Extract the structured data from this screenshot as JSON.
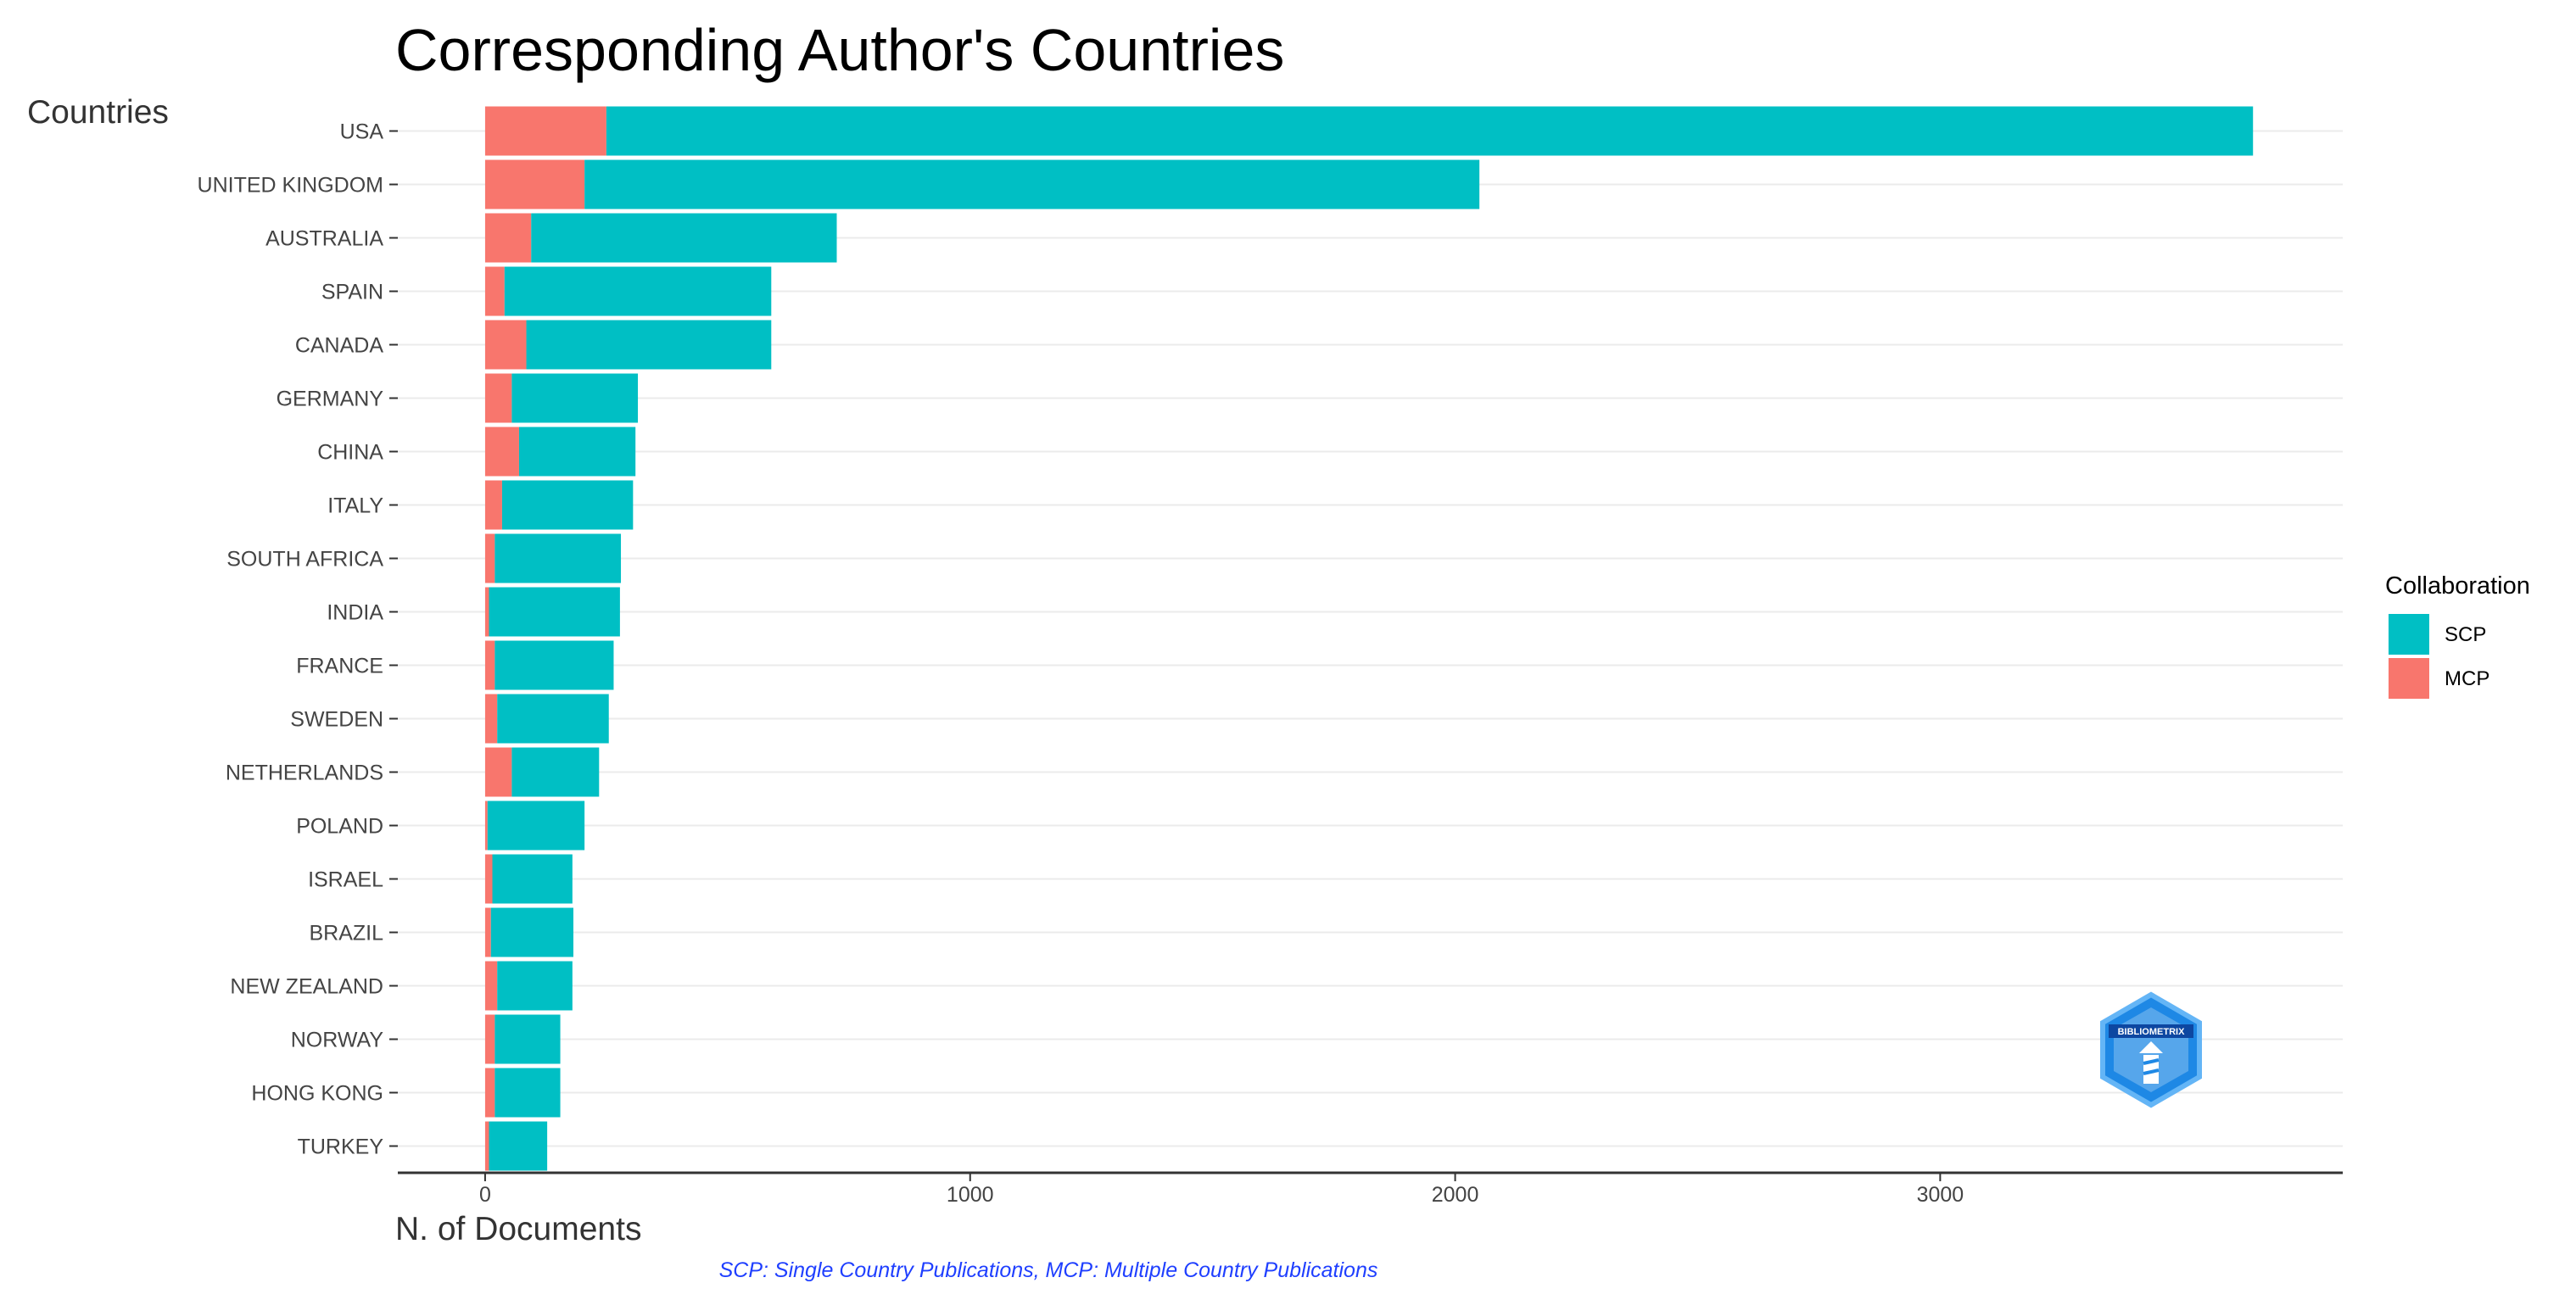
{
  "chart_data": {
    "type": "bar",
    "orientation": "horizontal",
    "stacked": true,
    "title": "Corresponding Author's Countries",
    "xlabel": "N. of Documents",
    "ylabel": "Countries",
    "xlim": [
      -180,
      3830
    ],
    "xticks": [
      0,
      1000,
      2000,
      3000
    ],
    "grid": true,
    "legend": {
      "title": "Collaboration",
      "position": "right"
    },
    "categories": [
      "USA",
      "UNITED KINGDOM",
      "AUSTRALIA",
      "SPAIN",
      "CANADA",
      "GERMANY",
      "CHINA",
      "ITALY",
      "SOUTH AFRICA",
      "INDIA",
      "FRANCE",
      "SWEDEN",
      "NETHERLANDS",
      "POLAND",
      "ISRAEL",
      "BRAZIL",
      "NEW ZEALAND",
      "NORWAY",
      "HONG KONG",
      "TURKEY"
    ],
    "series": [
      {
        "name": "SCP",
        "color": "#00bfc4",
        "values": [
          3395,
          1845,
          630,
          550,
          505,
          260,
          240,
          270,
          260,
          270,
          245,
          230,
          180,
          200,
          165,
          170,
          155,
          135,
          135,
          120
        ]
      },
      {
        "name": "MCP",
        "color": "#f8766d",
        "values": [
          250,
          205,
          95,
          40,
          85,
          55,
          70,
          35,
          20,
          8,
          20,
          25,
          55,
          5,
          15,
          12,
          25,
          20,
          20,
          8
        ]
      }
    ]
  },
  "caption": "SCP: Single Country Publications, MCP: Multiple Country Publications",
  "logo": {
    "name": "bibliometrix-logo",
    "text": "BIBLIOMETRIX",
    "color": "#1e88e5"
  }
}
